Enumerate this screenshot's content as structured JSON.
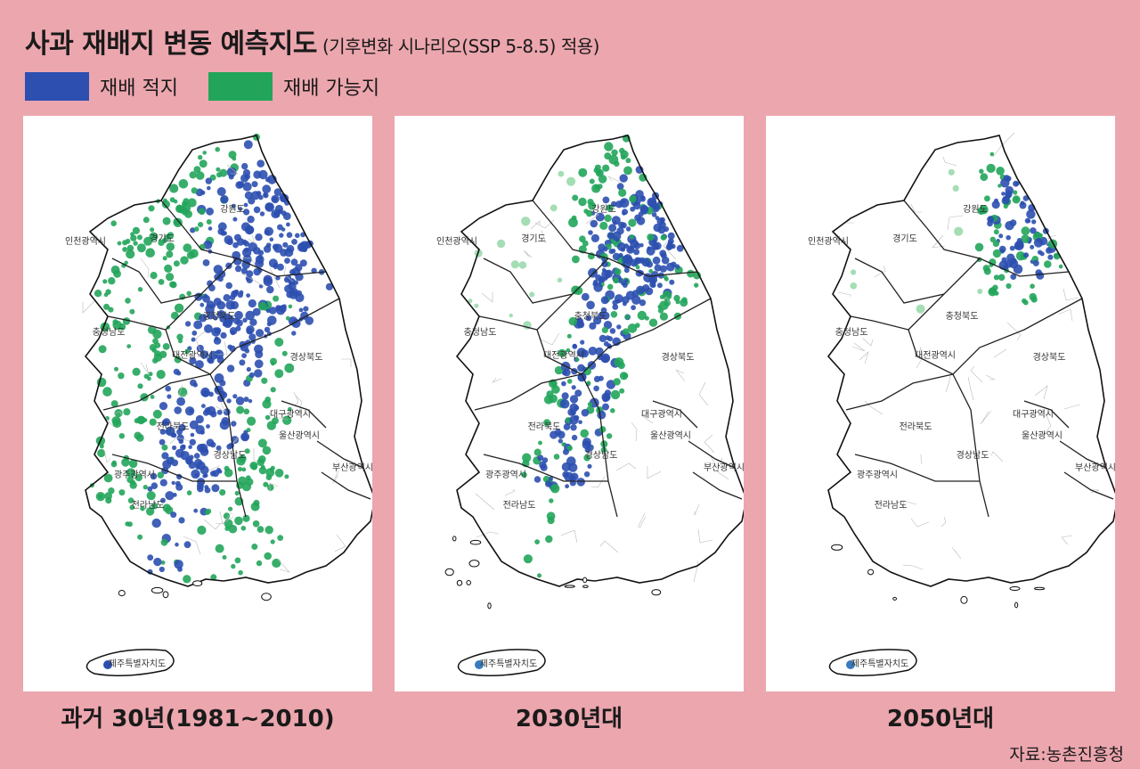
{
  "title": "사과 재배지 변동 예측지도",
  "subtitle": "(기후변화 시나리오(SSP 5-8.5) 적용)",
  "legend": [
    {
      "label": "재배 적지",
      "color": "#2c4fb0"
    },
    {
      "label": "재배 가능지",
      "color": "#22a55b"
    }
  ],
  "region_labels": [
    "강원도",
    "경기도",
    "인천광역시",
    "충청북도",
    "충청남도",
    "대전광역시",
    "경상북도",
    "전라북도",
    "대구광역시",
    "울산광역시",
    "경상남도",
    "광주광역시",
    "전라남도",
    "부산광역시",
    "제주특별자치도"
  ],
  "maps": [
    {
      "caption": "과거 30년(1981~2010)",
      "suitable_level": 0.9,
      "possible_level": 0.9
    },
    {
      "caption": "2030년대",
      "suitable_level": 0.45,
      "possible_level": 0.55
    },
    {
      "caption": "2050년대",
      "suitable_level": 0.15,
      "possible_level": 0.25
    }
  ],
  "source": "자료:농촌진흥청"
}
